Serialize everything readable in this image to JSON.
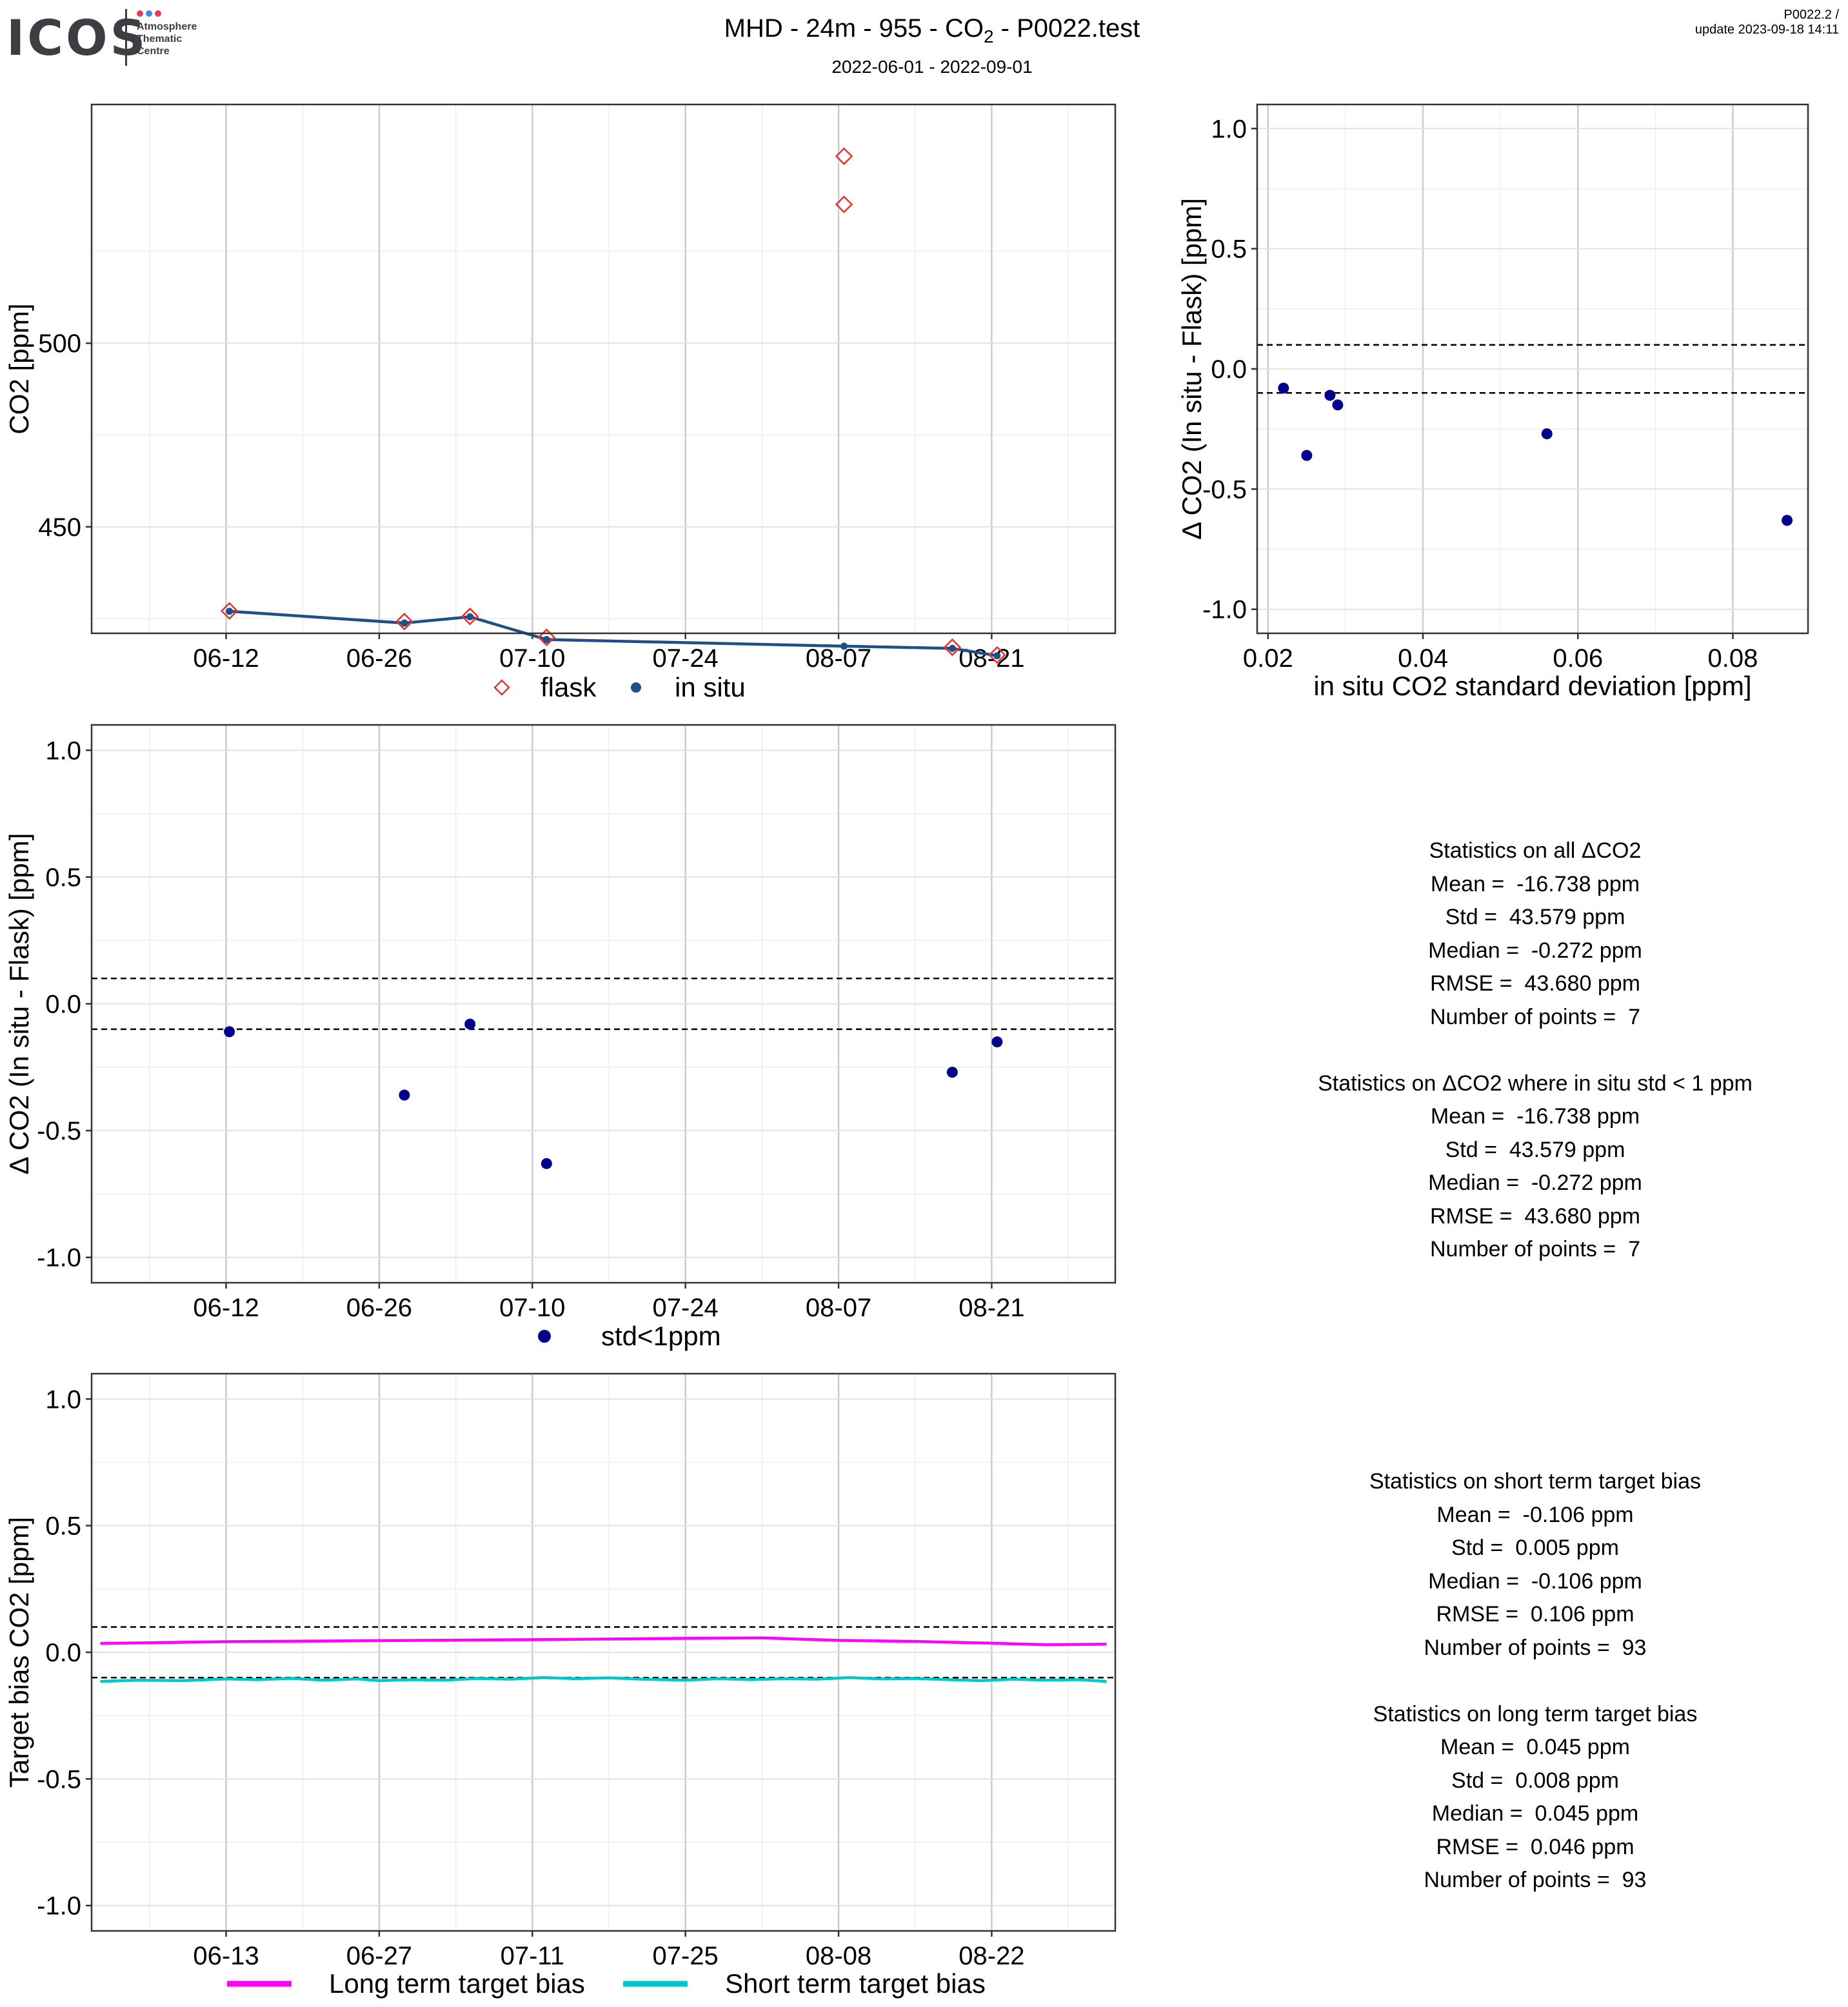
{
  "header": {
    "logo": "ICOS",
    "logo_sub": [
      "Atmosphere",
      "Thematic",
      "Centre"
    ],
    "title_parts": [
      "MHD - 24m - 955 - CO",
      "2",
      " - P0022.test"
    ],
    "subtitle": "2022-06-01 - 2022-09-01",
    "top_right": [
      "P0022.2 /",
      "update  2023-09-18 14:11"
    ],
    "logo_colors": [
      "#e63b5a",
      "#3a8fd8",
      "#e63b5a"
    ]
  },
  "stats_all": {
    "lines": [
      "Statistics on all ΔCO2",
      "Mean =  -16.738 ppm",
      "Std =  43.579 ppm",
      "Median =  -0.272 ppm",
      "RMSE =  43.680 ppm",
      "Number of points =  7",
      "",
      "Statistics on ΔCO2 where in situ std < 1 ppm",
      "Mean =  -16.738 ppm",
      "Std =  43.579 ppm",
      "Median =  -0.272 ppm",
      "RMSE =  43.680 ppm",
      "Number of points =  7"
    ]
  },
  "stats_target": {
    "lines": [
      "Statistics on short term target bias",
      "Mean =  -0.106 ppm",
      "Std =  0.005 ppm",
      "Median =  -0.106 ppm",
      "RMSE =  0.106 ppm",
      "Number of points =  93",
      "",
      "Statistics on long term target bias",
      "Mean =  0.045 ppm",
      "Std =  0.008 ppm",
      "Median =  0.045 ppm",
      "RMSE =  0.046 ppm",
      "Number of points =  93"
    ]
  },
  "chart_data": [
    {
      "id": "co2-timeseries",
      "type": "line",
      "ylabel": "CO2 [ppm]",
      "xlabel": "",
      "x_tick_labels": [
        "06-12",
        "06-26",
        "07-10",
        "07-24",
        "08-07",
        "08-21"
      ],
      "x_tick_days": [
        0,
        14,
        28,
        42,
        56,
        70
      ],
      "xlim_days": [
        -12.3,
        81.3
      ],
      "ylim": [
        421,
        565
      ],
      "yticks": [
        450,
        500
      ],
      "legend": [
        "flask",
        "in situ"
      ],
      "legend_position": "bottom",
      "colors": {
        "flask": "#e8302a",
        "insitu": "#1f4e89"
      },
      "flask": {
        "x_days": [
          0.3,
          16.3,
          22.3,
          29.3,
          56.5,
          66.4,
          70.5
        ],
        "y": [
          427.1,
          424.2,
          425.6,
          419.9,
          537.8,
          417.2,
          415.1
        ]
      },
      "insitu": {
        "x_days": [
          0.3,
          16.3,
          22.3,
          29.3,
          56.5,
          66.4,
          70.5
        ],
        "y": [
          427.0,
          423.8,
          425.5,
          419.3,
          417.5,
          416.9,
          414.9
        ]
      },
      "flask_extra": {
        "x_days": [
          56.5
        ],
        "y": [
          550.9
        ]
      }
    },
    {
      "id": "delta-vs-std",
      "type": "scatter",
      "xlabel": "in situ CO2 standard deviation [ppm]",
      "ylabel": "Δ CO2 (In situ - Flask) [ppm]",
      "xlim": [
        0.0186,
        0.0897
      ],
      "ylim": [
        -1.1,
        1.1
      ],
      "xticks": [
        0.02,
        0.04,
        0.06,
        0.08
      ],
      "yticks": [
        -1.0,
        -0.5,
        0.0,
        0.5,
        1.0
      ],
      "x_tick_labels": [
        "0.02",
        "0.04",
        "0.06",
        "0.08"
      ],
      "y_tick_labels": [
        "-1.0",
        "-0.5",
        "0.0",
        "0.5",
        "1.0"
      ],
      "hlines": [
        0.1,
        -0.1
      ],
      "color": "#00008b",
      "points": {
        "x": [
          0.022,
          0.025,
          0.028,
          0.029,
          0.056,
          0.087
        ],
        "y": [
          -0.08,
          -0.36,
          -0.11,
          -0.15,
          -0.27,
          -0.63
        ]
      }
    },
    {
      "id": "delta-timeseries",
      "type": "scatter",
      "ylabel": "Δ CO2 (In situ - Flask) [ppm]",
      "xlabel": "",
      "x_tick_labels": [
        "06-12",
        "06-26",
        "07-10",
        "07-24",
        "08-07",
        "08-21"
      ],
      "x_tick_days": [
        0,
        14,
        28,
        42,
        56,
        70
      ],
      "xlim_days": [
        -12.3,
        81.3
      ],
      "ylim": [
        -1.1,
        1.1
      ],
      "yticks": [
        -1.0,
        -0.5,
        0.0,
        0.5,
        1.0
      ],
      "y_tick_labels": [
        "-1.0",
        "-0.5",
        "0.0",
        "0.5",
        "1.0"
      ],
      "hlines": [
        0.1,
        -0.1
      ],
      "legend": [
        "std<1ppm"
      ],
      "legend_position": "bottom",
      "color": "#00008b",
      "points": {
        "x_days": [
          0.3,
          16.3,
          22.3,
          29.3,
          66.4,
          70.5
        ],
        "y": [
          -0.11,
          -0.36,
          -0.08,
          -0.63,
          -0.27,
          -0.15
        ]
      }
    },
    {
      "id": "target-bias",
      "type": "line",
      "ylabel": "Target bias CO2 [ppm]",
      "xlabel": "",
      "x_tick_labels": [
        "06-13",
        "06-27",
        "07-11",
        "07-25",
        "08-08",
        "08-22"
      ],
      "x_tick_days": [
        0,
        14,
        28,
        42,
        56,
        70
      ],
      "xlim_days": [
        -12.3,
        81.3
      ],
      "ylim": [
        -1.1,
        1.1
      ],
      "yticks": [
        -1.0,
        -0.5,
        0.0,
        0.5,
        1.0
      ],
      "y_tick_labels": [
        "-1.0",
        "-0.5",
        "0.0",
        "0.5",
        "1.0"
      ],
      "hlines": [
        0.1,
        -0.1
      ],
      "legend": [
        "Long term target bias",
        "Short term target bias"
      ],
      "legend_position": "bottom",
      "series": [
        {
          "name": "Long term target bias",
          "color": "#ff00ff",
          "x_days": [
            -11.5,
            0,
            14,
            28,
            42,
            49,
            56,
            63,
            70,
            75,
            80.5
          ],
          "y": [
            0.035,
            0.042,
            0.046,
            0.05,
            0.055,
            0.057,
            0.047,
            0.043,
            0.036,
            0.03,
            0.032
          ]
        },
        {
          "name": "Short term target bias",
          "color": "#00c8c8",
          "x_days": [
            -11.5,
            -8,
            -4,
            0,
            3,
            6,
            9,
            12,
            14,
            17,
            20,
            23,
            26,
            29,
            32,
            35,
            38,
            42,
            45,
            48,
            51,
            54,
            57,
            60,
            63,
            66,
            69,
            72,
            75,
            78,
            80.5
          ],
          "y": [
            -0.115,
            -0.11,
            -0.112,
            -0.105,
            -0.108,
            -0.103,
            -0.11,
            -0.105,
            -0.112,
            -0.108,
            -0.11,
            -0.103,
            -0.106,
            -0.1,
            -0.104,
            -0.101,
            -0.106,
            -0.11,
            -0.104,
            -0.108,
            -0.104,
            -0.106,
            -0.1,
            -0.105,
            -0.103,
            -0.108,
            -0.112,
            -0.106,
            -0.11,
            -0.108,
            -0.115
          ]
        }
      ]
    }
  ]
}
